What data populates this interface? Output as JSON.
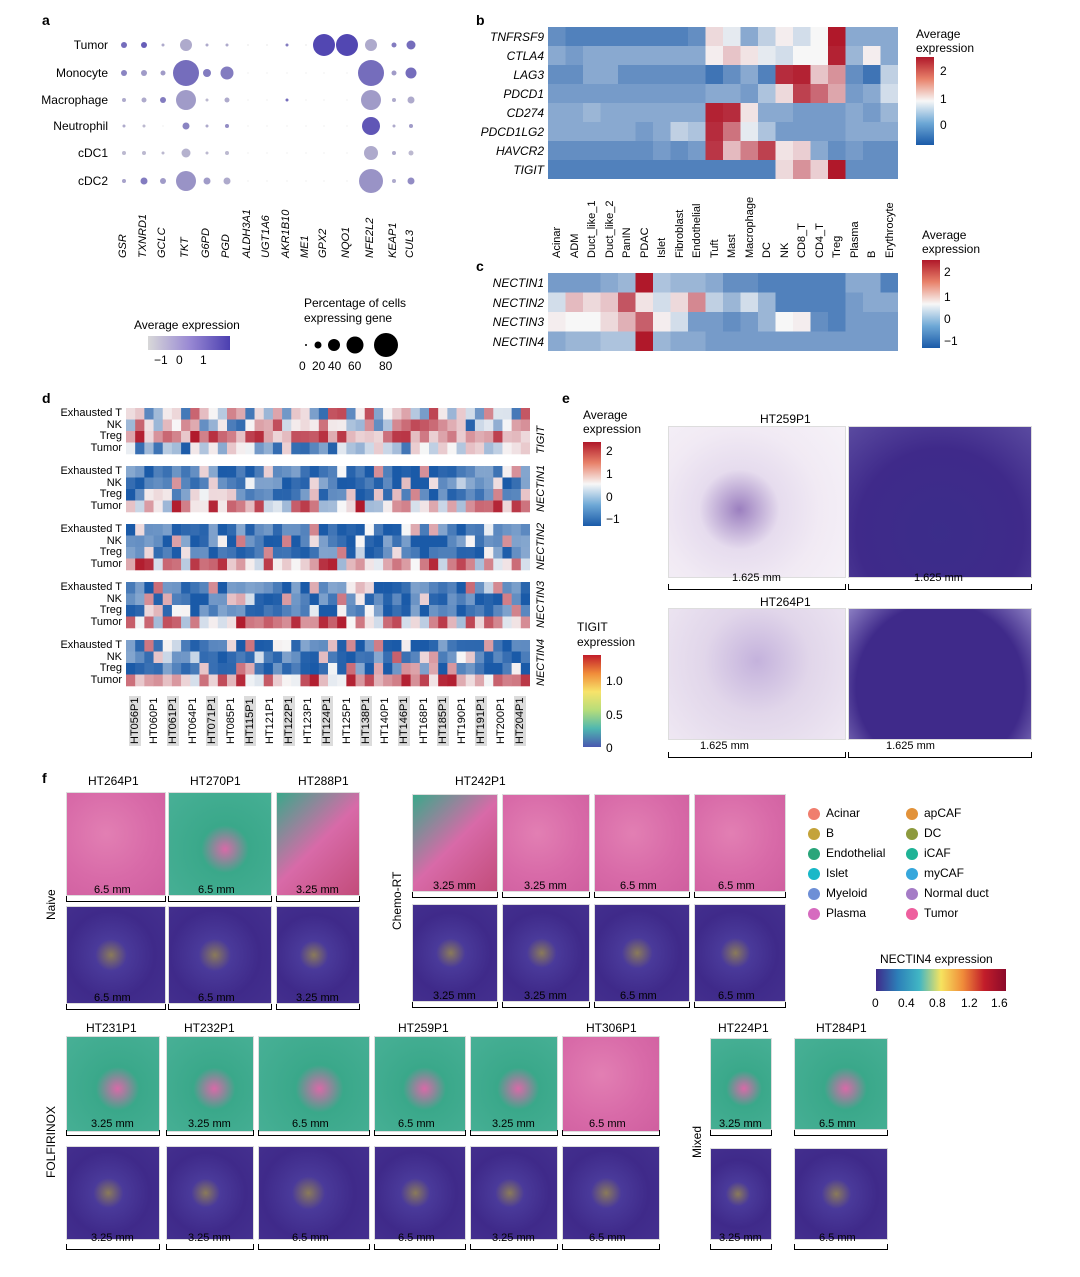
{
  "panel_a": {
    "label": "a",
    "rows": [
      "Tumor",
      "Monocyte",
      "Macrophage",
      "Neutrophil",
      "cDC1",
      "cDC2"
    ],
    "genes": [
      "GSR",
      "TXNRD1",
      "GCLC",
      "TKT",
      "G6PD",
      "PGD",
      "ALDH3A1",
      "UGT1A6",
      "AKR1B10",
      "ME1",
      "GPX2",
      "NQO1",
      "NFE2L2",
      "KEAP1",
      "CUL3"
    ],
    "color_legend_title": "Average expression",
    "color_ticks": [
      "−1",
      "0",
      "1"
    ],
    "size_legend_title_1": "Percentage of cells",
    "size_legend_title_2": "expressing gene",
    "size_ticks": [
      "0",
      "20",
      "40",
      "60",
      "80"
    ]
  },
  "panel_b": {
    "label": "b",
    "genes": [
      "TNFRSF9",
      "CTLA4",
      "LAG3",
      "PDCD1",
      "CD274",
      "PDCD1LG2",
      "HAVCR2",
      "TIGIT"
    ],
    "cell_types": [
      "Acinar",
      "ADM",
      "Duct_like_1",
      "Duct_like_2",
      "PanIN",
      "PDAC",
      "Islet",
      "Fibroblast",
      "Endothelial",
      "Tuft",
      "Mast",
      "Macrophage",
      "DC",
      "NK",
      "CD8_T",
      "CD4_T",
      "Treg",
      "Plasma",
      "B",
      "Erythrocyte"
    ],
    "legend_title_1": "Average",
    "legend_title_2": "expression",
    "legend_ticks": [
      "2",
      "1",
      "0"
    ]
  },
  "panel_c": {
    "label": "c",
    "genes": [
      "NECTIN1",
      "NECTIN2",
      "NECTIN3",
      "NECTIN4"
    ],
    "legend_title_1": "Average",
    "legend_title_2": "expression",
    "legend_ticks": [
      "2",
      "1",
      "0",
      "−1"
    ]
  },
  "panel_d": {
    "label": "d",
    "blocks": [
      {
        "gene": "TIGIT",
        "rows": [
          "Exhausted T",
          "NK",
          "Treg",
          "Tumor"
        ]
      },
      {
        "gene": "NECTIN1",
        "rows": [
          "Exhausted T",
          "NK",
          "Treg",
          "Tumor"
        ]
      },
      {
        "gene": "NECTIN2",
        "rows": [
          "Exhausted T",
          "NK",
          "Treg",
          "Tumor"
        ]
      },
      {
        "gene": "NECTIN3",
        "rows": [
          "Exhausted T",
          "NK",
          "Treg",
          "Tumor"
        ]
      },
      {
        "gene": "NECTIN4",
        "rows": [
          "Exhausted T",
          "NK",
          "Treg",
          "Tumor"
        ]
      }
    ],
    "samples": [
      "HT056P1",
      "HT060P1",
      "HT061P1",
      "HT064P1",
      "HT071P1",
      "HT085P1",
      "HT115P1",
      "HT121P1",
      "HT122P1",
      "HT123P1",
      "HT124P1",
      "HT125P1",
      "HT138P1",
      "HT140P1",
      "HT146P1",
      "HT168P1",
      "HT185P1",
      "HT190P1",
      "HT191P1",
      "HT200P1",
      "HT204P1"
    ]
  },
  "panel_e": {
    "label": "e",
    "legend1_title_1": "Average",
    "legend1_title_2": "expression",
    "legend1_ticks": [
      "2",
      "1",
      "0",
      "−1"
    ],
    "legend2_title_1": "TIGIT",
    "legend2_title_2": "expression",
    "legend2_ticks": [
      "1.0",
      "0.5",
      "0"
    ],
    "samples": [
      "HT259P1",
      "HT264P1"
    ],
    "scale": "1.625 mm"
  },
  "panel_f": {
    "label": "f",
    "groups": {
      "naive": {
        "label": "Naive",
        "samples": [
          "HT264P1",
          "HT270P1",
          "HT288P1"
        ],
        "scales": [
          "6.5 mm",
          "6.5 mm",
          "3.25 mm"
        ]
      },
      "chemo": {
        "label": "Chemo-RT",
        "samples": [
          "HT242P1"
        ],
        "scales": [
          "3.25 mm",
          "3.25 mm",
          "6.5 mm",
          "6.5 mm"
        ]
      },
      "folfirinox": {
        "label": "FOLFIRINOX",
        "samples": [
          "HT231P1",
          "HT232P1",
          "HT259P1",
          "HT306P1"
        ],
        "scales": [
          "3.25 mm",
          "3.25 mm",
          "6.5 mm",
          "6.5 mm",
          "3.25 mm",
          "6.5 mm"
        ]
      },
      "mixed": {
        "label": "Mixed",
        "samples": [
          "HT224P1",
          "HT284P1"
        ],
        "scales": [
          "3.25 mm",
          "6.5 mm"
        ]
      }
    },
    "legend": [
      {
        "name": "Acinar",
        "color": "#f07e6e"
      },
      {
        "name": "apCAF",
        "color": "#e2923a"
      },
      {
        "name": "B",
        "color": "#c4a33a"
      },
      {
        "name": "DC",
        "color": "#8d9a3e"
      },
      {
        "name": "Endothelial",
        "color": "#2aa57a"
      },
      {
        "name": "iCAF",
        "color": "#1fb396"
      },
      {
        "name": "Islet",
        "color": "#19b8c8"
      },
      {
        "name": "myCAF",
        "color": "#36a7dc"
      },
      {
        "name": "Myeloid",
        "color": "#6e8fd6"
      },
      {
        "name": "Normal duct",
        "color": "#a57cc6"
      },
      {
        "name": "Plasma",
        "color": "#d66bbf"
      },
      {
        "name": "Tumor",
        "color": "#ee5f9e"
      }
    ],
    "nectin_title": "NECTIN4 expression",
    "nectin_ticks": [
      "0",
      "0.4",
      "0.8",
      "1.2",
      "1.6"
    ]
  },
  "colors": {
    "dot_low": "#d8d8d8",
    "dot_high": "#4b3fb0",
    "heat_low": "#1a5aa8",
    "heat_mid": "#f7f7f7",
    "heat_high": "#b0182a",
    "spatial_bg": "#3f2a8a"
  }
}
